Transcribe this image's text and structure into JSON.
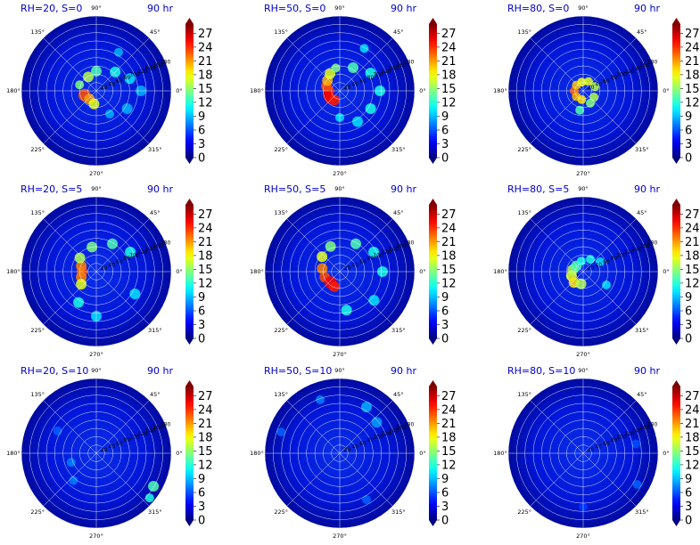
{
  "colors": {
    "title_text": "#0000cc",
    "colormap": "jet",
    "background": "#00008f"
  },
  "chart_data": [
    {
      "type": "heatmap",
      "projection": "polar",
      "title_left": "RH=20, S=0",
      "title_right": "90 hr",
      "angle_ticks": [
        "0°",
        "45°",
        "90°",
        "135°",
        "180°",
        "225°",
        "270°",
        "315°"
      ],
      "radial_ticks": [
        "20",
        "40",
        "60",
        "80",
        "100",
        "120",
        "140",
        "160",
        "180"
      ],
      "colorbar": {
        "min": 0,
        "max": 29,
        "ticks": [
          "0",
          "3",
          "6",
          "9",
          "12",
          "15",
          "18",
          "21",
          "24",
          "27"
        ],
        "extend": "both"
      }
    },
    {
      "type": "heatmap",
      "projection": "polar",
      "title_left": "RH=50, S=0",
      "title_right": "90 hr",
      "angle_ticks": [
        "0°",
        "45°",
        "90°",
        "135°",
        "180°",
        "225°",
        "270°",
        "315°"
      ],
      "radial_ticks": [
        "20",
        "40",
        "60",
        "80",
        "100",
        "120",
        "140",
        "160",
        "180"
      ],
      "colorbar": {
        "min": 0,
        "max": 29,
        "ticks": [
          "0",
          "3",
          "6",
          "9",
          "12",
          "15",
          "18",
          "21",
          "24",
          "27"
        ],
        "extend": "both"
      }
    },
    {
      "type": "heatmap",
      "projection": "polar",
      "title_left": "RH=80, S=0",
      "title_right": "90 hr",
      "angle_ticks": [
        "0°",
        "45°",
        "90°",
        "135°",
        "180°",
        "225°",
        "270°",
        "315°"
      ],
      "radial_ticks": [
        "20",
        "40",
        "60",
        "80",
        "100",
        "120",
        "140",
        "160",
        "180"
      ],
      "colorbar": {
        "min": 0,
        "max": 29,
        "ticks": [
          "0",
          "3",
          "6",
          "9",
          "12",
          "15",
          "18",
          "21",
          "24",
          "27"
        ],
        "extend": "both"
      }
    },
    {
      "type": "heatmap",
      "projection": "polar",
      "title_left": "RH=20, S=5",
      "title_right": "90 hr",
      "angle_ticks": [
        "0°",
        "45°",
        "90°",
        "135°",
        "180°",
        "225°",
        "270°",
        "315°"
      ],
      "radial_ticks": [
        "20",
        "40",
        "60",
        "80",
        "100",
        "120",
        "140",
        "160",
        "180"
      ],
      "colorbar": {
        "min": 0,
        "max": 29,
        "ticks": [
          "0",
          "3",
          "6",
          "9",
          "12",
          "15",
          "18",
          "21",
          "24",
          "27"
        ],
        "extend": "both"
      }
    },
    {
      "type": "heatmap",
      "projection": "polar",
      "title_left": "RH=50, S=5",
      "title_right": "90 hr",
      "angle_ticks": [
        "0°",
        "45°",
        "90°",
        "135°",
        "180°",
        "225°",
        "270°",
        "315°"
      ],
      "radial_ticks": [
        "20",
        "40",
        "60",
        "80",
        "100",
        "120",
        "140",
        "160",
        "180"
      ],
      "colorbar": {
        "min": 0,
        "max": 29,
        "ticks": [
          "0",
          "3",
          "6",
          "9",
          "12",
          "15",
          "18",
          "21",
          "24",
          "27"
        ],
        "extend": "both"
      }
    },
    {
      "type": "heatmap",
      "projection": "polar",
      "title_left": "RH=80, S=5",
      "title_right": "90 hr",
      "angle_ticks": [
        "0°",
        "45°",
        "90°",
        "135°",
        "180°",
        "225°",
        "270°",
        "315°"
      ],
      "radial_ticks": [
        "20",
        "40",
        "60",
        "80",
        "100",
        "120",
        "140",
        "160",
        "180"
      ],
      "colorbar": {
        "min": 0,
        "max": 29,
        "ticks": [
          "0",
          "3",
          "6",
          "9",
          "12",
          "15",
          "18",
          "21",
          "24",
          "27"
        ],
        "extend": "both"
      }
    },
    {
      "type": "heatmap",
      "projection": "polar",
      "title_left": "RH=20, S=10",
      "title_right": "90 hr",
      "angle_ticks": [
        "0°",
        "45°",
        "90°",
        "135°",
        "180°",
        "225°",
        "270°",
        "315°"
      ],
      "radial_ticks": [
        "20",
        "40",
        "60",
        "80",
        "100",
        "120",
        "140",
        "160",
        "180"
      ],
      "colorbar": {
        "min": 0,
        "max": 29,
        "ticks": [
          "0",
          "3",
          "6",
          "9",
          "12",
          "15",
          "18",
          "21",
          "24",
          "27"
        ],
        "extend": "both"
      }
    },
    {
      "type": "heatmap",
      "projection": "polar",
      "title_left": "RH=50, S=10",
      "title_right": "90 hr",
      "angle_ticks": [
        "0°",
        "45°",
        "90°",
        "135°",
        "180°",
        "225°",
        "270°",
        "315°"
      ],
      "radial_ticks": [
        "20",
        "40",
        "60",
        "80",
        "100",
        "120",
        "140",
        "160",
        "180"
      ],
      "colorbar": {
        "min": 0,
        "max": 29,
        "ticks": [
          "0",
          "3",
          "6",
          "9",
          "12",
          "15",
          "18",
          "21",
          "24",
          "27"
        ],
        "extend": "both"
      }
    },
    {
      "type": "heatmap",
      "projection": "polar",
      "title_left": "RH=80, S=10",
      "title_right": "90 hr",
      "angle_ticks": [
        "0°",
        "45°",
        "90°",
        "135°",
        "180°",
        "225°",
        "270°",
        "315°"
      ],
      "radial_ticks": [
        "20",
        "40",
        "60",
        "80",
        "100",
        "120",
        "140",
        "160",
        "180"
      ],
      "colorbar": {
        "min": 0,
        "max": 29,
        "ticks": [
          "0",
          "3",
          "6",
          "9",
          "12",
          "15",
          "18",
          "21",
          "24",
          "27"
        ],
        "extend": "both"
      }
    }
  ]
}
